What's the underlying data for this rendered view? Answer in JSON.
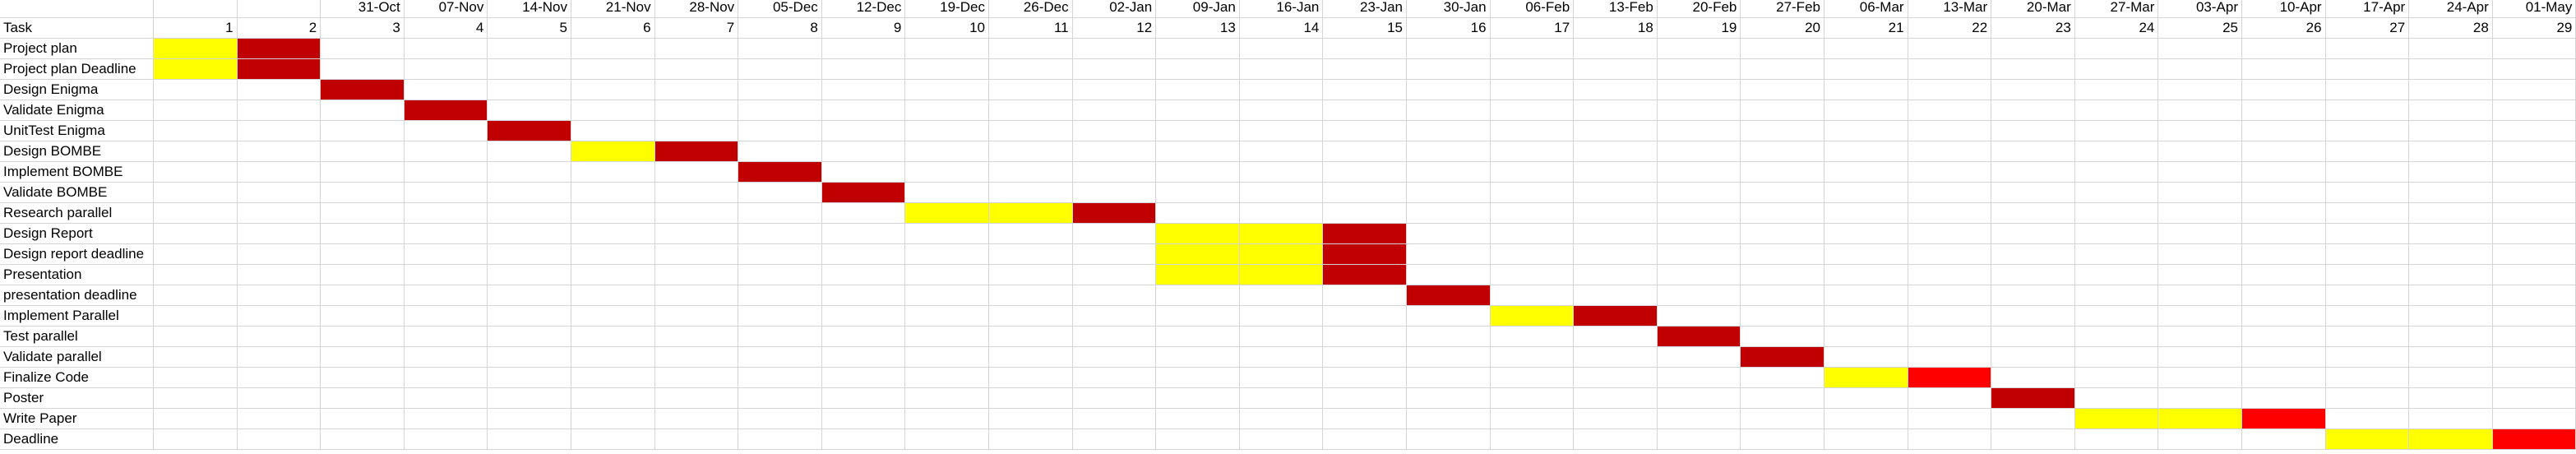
{
  "sheet": {
    "dates": [
      "",
      "",
      "31-Oct",
      "07-Nov",
      "14-Nov",
      "21-Nov",
      "28-Nov",
      "05-Dec",
      "12-Dec",
      "19-Dec",
      "26-Dec",
      "02-Jan",
      "09-Jan",
      "16-Jan",
      "23-Jan",
      "30-Jan",
      "06-Feb",
      "13-Feb",
      "20-Feb",
      "27-Feb",
      "06-Mar",
      "13-Mar",
      "20-Mar",
      "27-Mar",
      "03-Apr",
      "10-Apr",
      "17-Apr",
      "24-Apr",
      "01-May"
    ],
    "header_label": "Task",
    "week_numbers": [
      "1",
      "2",
      "3",
      "4",
      "5",
      "6",
      "7",
      "8",
      "9",
      "10",
      "11",
      "12",
      "13",
      "14",
      "15",
      "16",
      "17",
      "18",
      "19",
      "20",
      "21",
      "22",
      "23",
      "24",
      "25",
      "26",
      "27",
      "28",
      "29"
    ],
    "tasks": [
      {
        "name": "Project plan",
        "bars": [
          {
            "start": 1,
            "weeks": 1,
            "status": "yellow"
          },
          {
            "start": 2,
            "weeks": 1,
            "status": "dark_red",
            "rows": 2
          }
        ]
      },
      {
        "name": "Project plan Deadline",
        "bars": [
          {
            "start": 1,
            "weeks": 1,
            "status": "yellow"
          }
        ]
      },
      {
        "name": "Design Enigma",
        "bars": [
          {
            "start": 3,
            "weeks": 1,
            "status": "dark_red"
          }
        ]
      },
      {
        "name": "Validate Enigma",
        "bars": [
          {
            "start": 4,
            "weeks": 1,
            "status": "dark_red"
          }
        ]
      },
      {
        "name": "UnitTest Enigma",
        "bars": [
          {
            "start": 5,
            "weeks": 1,
            "status": "dark_red"
          }
        ]
      },
      {
        "name": "Design BOMBE",
        "bars": [
          {
            "start": 6,
            "weeks": 1,
            "status": "yellow"
          },
          {
            "start": 7,
            "weeks": 1,
            "status": "dark_red"
          }
        ]
      },
      {
        "name": "Implement BOMBE",
        "bars": [
          {
            "start": 8,
            "weeks": 1,
            "status": "dark_red"
          }
        ]
      },
      {
        "name": "Validate BOMBE",
        "bars": [
          {
            "start": 9,
            "weeks": 1,
            "status": "dark_red"
          }
        ]
      },
      {
        "name": "Research parallel",
        "bars": [
          {
            "start": 10,
            "weeks": 2,
            "status": "yellow"
          },
          {
            "start": 12,
            "weeks": 1,
            "status": "dark_red"
          }
        ]
      },
      {
        "name": "Design Report",
        "bars": [
          {
            "start": 13,
            "weeks": 2,
            "status": "yellow",
            "rows": 3
          },
          {
            "start": 15,
            "weeks": 1,
            "status": "dark_red",
            "rows": 3
          }
        ]
      },
      {
        "name": "Design report deadline",
        "bars": []
      },
      {
        "name": "Presentation",
        "bars": []
      },
      {
        "name": "presentation deadline",
        "bars": [
          {
            "start": 16,
            "weeks": 1,
            "status": "dark_red"
          }
        ]
      },
      {
        "name": "Implement Parallel",
        "bars": [
          {
            "start": 17,
            "weeks": 1,
            "status": "yellow"
          },
          {
            "start": 18,
            "weeks": 1,
            "status": "dark_red"
          }
        ]
      },
      {
        "name": "Test parallel",
        "bars": [
          {
            "start": 19,
            "weeks": 1,
            "status": "dark_red"
          }
        ]
      },
      {
        "name": "Validate parallel",
        "bars": [
          {
            "start": 20,
            "weeks": 1,
            "status": "dark_red"
          }
        ]
      },
      {
        "name": "Finalize Code",
        "bars": [
          {
            "start": 21,
            "weeks": 1,
            "status": "yellow"
          },
          {
            "start": 22,
            "weeks": 1,
            "status": "red"
          }
        ]
      },
      {
        "name": "Poster",
        "bars": [
          {
            "start": 23,
            "weeks": 1,
            "status": "dark_red"
          }
        ]
      },
      {
        "name": "Write Paper",
        "bars": [
          {
            "start": 24,
            "weeks": 2,
            "status": "yellow"
          },
          {
            "start": 26,
            "weeks": 1,
            "status": "red"
          }
        ]
      },
      {
        "name": "Deadline",
        "bars": [
          {
            "start": 27,
            "weeks": 2,
            "status": "yellow"
          },
          {
            "start": 29,
            "weeks": 1,
            "status": "red"
          }
        ]
      }
    ],
    "colors": {
      "yellow": "#ffff00",
      "dark_red": "#c00000",
      "red": "#ff0000",
      "gridline": "#d4d4d4"
    }
  }
}
